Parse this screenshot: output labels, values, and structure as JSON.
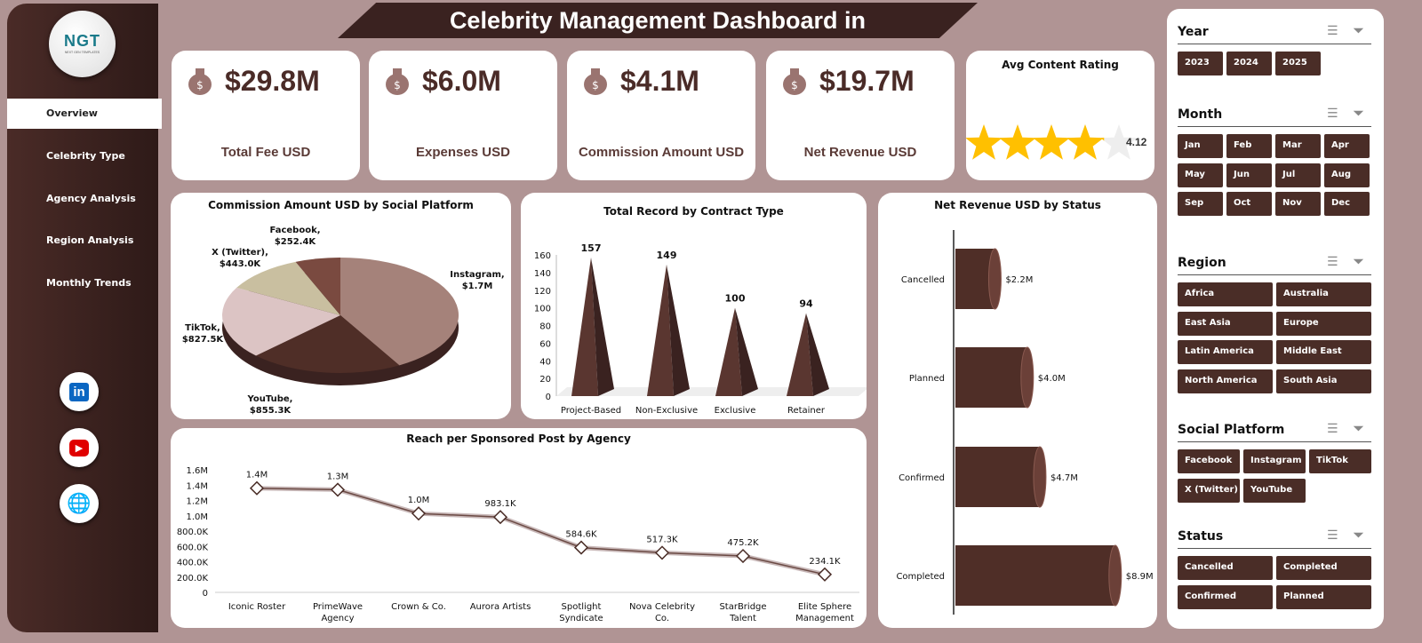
{
  "app": {
    "title": "Celebrity Management Dashboard in"
  },
  "logo": {
    "text": "NGT",
    "tagline": "NEXT GEN TEMPLATES"
  },
  "sidebar": {
    "items": [
      {
        "label": "Overview",
        "active": true
      },
      {
        "label": "Celebrity Type"
      },
      {
        "label": "Agency Analysis"
      },
      {
        "label": "Region Analysis"
      },
      {
        "label": "Monthly Trends"
      }
    ],
    "social": [
      {
        "icon": "linkedin-icon",
        "label": "in",
        "color": "#0a66c2"
      },
      {
        "icon": "youtube-icon",
        "label": "▶",
        "color": "#e00000"
      },
      {
        "icon": "globe-icon",
        "label": "🌐",
        "color": "#1a8fd0"
      }
    ]
  },
  "kpis": [
    {
      "value": "$29.8M",
      "label": "Total Fee USD",
      "icon": "money-bag-hand-icon"
    },
    {
      "value": "$6.0M",
      "label": "Expenses USD",
      "icon": "money-bag-growth-icon"
    },
    {
      "value": "$4.1M",
      "label": "Commission Amount USD",
      "icon": "money-bags-icon"
    },
    {
      "value": "$19.7M",
      "label": "Net Revenue USD",
      "icon": "coins-cash-icon"
    }
  ],
  "rating": {
    "title": "Avg Content Rating",
    "value": 4.12,
    "value_label": "4.12",
    "max": 5,
    "star_color": "#ffc000"
  },
  "colors": {
    "brand_dark": "#3a2220",
    "button": "#4a2d27",
    "background": "#b09494"
  },
  "chart_data": [
    {
      "type": "pie",
      "title": "Commission Amount USD by Social Platform",
      "categories": [
        "Instagram",
        "YouTube",
        "TikTok",
        "X (Twitter)",
        "Facebook"
      ],
      "values": [
        1700000,
        855300,
        827500,
        443000,
        252400
      ],
      "labels": [
        "$1.7M",
        "$855.3K",
        "$827.5K",
        "$443.0K",
        "$252.4K"
      ],
      "colors": [
        "#a5827a",
        "#4f2e27",
        "#dcc4c4",
        "#c9bfa0",
        "#7a4a40"
      ]
    },
    {
      "type": "bar",
      "title": "Total Record by Contract Type",
      "categories": [
        "Project-Based",
        "Non-Exclusive",
        "Exclusive",
        "Retainer"
      ],
      "values": [
        157,
        149,
        100,
        94
      ],
      "ylim": [
        0,
        160
      ],
      "yticks": [
        0,
        20,
        40,
        60,
        80,
        100,
        120,
        140,
        160
      ]
    },
    {
      "type": "bar",
      "orientation": "horizontal",
      "title": "Net Revenue USD by Status",
      "categories": [
        "Cancelled",
        "Planned",
        "Confirmed",
        "Completed"
      ],
      "values": [
        2.2,
        4.0,
        4.7,
        8.9
      ],
      "labels": [
        "$2.2M",
        "$4.0M",
        "$4.7M",
        "$8.9M"
      ]
    },
    {
      "type": "line",
      "title": "Reach per Sponsored Post by Agency",
      "categories": [
        "Iconic Roster",
        "PrimeWave Agency",
        "Crown & Co.",
        "Aurora Artists",
        "Spotlight Syndicate",
        "Nova Celebrity Co.",
        "StarBridge Talent",
        "Elite Sphere Management"
      ],
      "values": [
        1360000,
        1340000,
        1030000,
        983100,
        584600,
        517300,
        475200,
        234100
      ],
      "labels": [
        "1.4M",
        "1.3M",
        "1.0M",
        "983.1K",
        "584.6K",
        "517.3K",
        "475.2K",
        "234.1K"
      ],
      "ylim": [
        0,
        1600000
      ],
      "yticks": [
        "0",
        "200.0K",
        "400.0K",
        "600.0K",
        "800.0K",
        "1.0M",
        "1.2M",
        "1.4M",
        "1.6M"
      ]
    }
  ],
  "slicers": [
    {
      "title": "Year",
      "items": [
        "2023",
        "2024",
        "2025"
      ]
    },
    {
      "title": "Month",
      "items": [
        "Jan",
        "Feb",
        "Mar",
        "Apr",
        "May",
        "Jun",
        "Jul",
        "Aug",
        "Sep",
        "Oct",
        "Nov",
        "Dec"
      ]
    },
    {
      "title": "Region",
      "items": [
        "Africa",
        "Australia",
        "East Asia",
        "Europe",
        "Latin America",
        "Middle East",
        "North America",
        "South Asia"
      ]
    },
    {
      "title": "Social Platform",
      "items": [
        "Facebook",
        "Instagram",
        "TikTok",
        "X (Twitter)",
        "YouTube"
      ]
    },
    {
      "title": "Status",
      "items": [
        "Cancelled",
        "Completed",
        "Confirmed",
        "Planned"
      ]
    }
  ]
}
